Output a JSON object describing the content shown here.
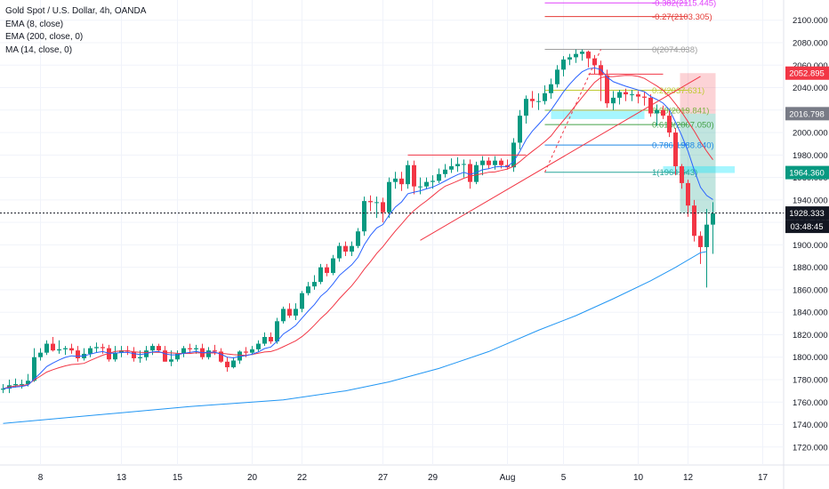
{
  "legend": {
    "symbol": "Gold Spot / U.S. Dollar, 4h, OANDA",
    "ema8": "EMA (8, close)",
    "ema200": "EMA (200, close, 0)",
    "ma14": "MA (14, close, 0)"
  },
  "chart_data": {
    "type": "candlestick",
    "title": "Gold Spot / U.S. Dollar, 4h, OANDA",
    "y_ticks": [
      1720,
      1740,
      1760,
      1780,
      1800,
      1820,
      1840,
      1860,
      1880,
      1900,
      1920,
      1940,
      1960,
      1980,
      2000,
      2020,
      2040,
      2060,
      2080,
      2100
    ],
    "y_tick_labels": [
      "1720.000",
      "1740.000",
      "1760.000",
      "1780.000",
      "1800.000",
      "1820.000",
      "1840.000",
      "1860.000",
      "1880.000",
      "1900.000",
      "1920.000",
      "1940.000",
      "1960.000",
      "1980.000",
      "2000.000",
      "2020.000",
      "2040.000",
      "2060.000",
      "2080.000",
      "2100.000"
    ],
    "ylim": [
      1704,
      2118
    ],
    "x_ticks": [
      {
        "label": "8",
        "bar": 6
      },
      {
        "label": "13",
        "bar": 19
      },
      {
        "label": "15",
        "bar": 28
      },
      {
        "label": "20",
        "bar": 40
      },
      {
        "label": "22",
        "bar": 48
      },
      {
        "label": "27",
        "bar": 61
      },
      {
        "label": "29",
        "bar": 69
      },
      {
        "label": "Aug",
        "bar": 81
      },
      {
        "label": "5",
        "bar": 90
      },
      {
        "label": "10",
        "bar": 102
      },
      {
        "label": "12",
        "bar": 110
      },
      {
        "label": "17",
        "bar": 122
      }
    ],
    "series": [
      {
        "name": "Gold Spot / U.S. Dollar",
        "kind": "ohlc",
        "open": [
          1771,
          1772,
          1775,
          1776,
          1776,
          1779,
          1800,
          1804,
          1812,
          1806,
          1807,
          1808,
          1806,
          1799,
          1803,
          1808,
          1809,
          1808,
          1798,
          1804,
          1806,
          1805,
          1799,
          1800,
          1806,
          1810,
          1806,
          1796,
          1798,
          1803,
          1808,
          1807,
          1808,
          1800,
          1806,
          1805,
          1796,
          1791,
          1797,
          1805,
          1804,
          1807,
          1812,
          1818,
          1814,
          1832,
          1843,
          1837,
          1843,
          1857,
          1863,
          1867,
          1880,
          1875,
          1888,
          1899,
          1894,
          1899,
          1912,
          1939,
          1938,
          1938,
          1929,
          1956,
          1959,
          1954,
          1971,
          1952,
          1952,
          1956,
          1957,
          1963,
          1967,
          1970,
          1972,
          1972,
          1956,
          1971,
          1975,
          1971,
          1975,
          1971,
          1969,
          1991,
          2015,
          2030,
          2028,
          2028,
          2035,
          2043,
          2056,
          2065,
          2067,
          2070,
          2072,
          2066,
          2060,
          2051,
          2026,
          2031,
          2036,
          2034,
          2034,
          2032,
          2031,
          2017,
          2020,
          2015,
          2000,
          1970,
          1955,
          1935,
          1908,
          1898,
          1918
        ],
        "high": [
          1776,
          1780,
          1781,
          1780,
          1785,
          1808,
          1808,
          1815,
          1818,
          1815,
          1810,
          1812,
          1810,
          1808,
          1810,
          1813,
          1812,
          1811,
          1810,
          1810,
          1810,
          1809,
          1806,
          1810,
          1812,
          1812,
          1810,
          1806,
          1806,
          1810,
          1812,
          1811,
          1812,
          1809,
          1811,
          1808,
          1800,
          1800,
          1806,
          1809,
          1810,
          1815,
          1822,
          1822,
          1835,
          1845,
          1848,
          1848,
          1859,
          1867,
          1873,
          1883,
          1883,
          1891,
          1902,
          1903,
          1903,
          1915,
          1943,
          1944,
          1943,
          1942,
          1960,
          1965,
          1965,
          1975,
          1975,
          1960,
          1960,
          1962,
          1968,
          1972,
          1977,
          1978,
          1976,
          1976,
          1974,
          1979,
          1978,
          1979,
          1977,
          1976,
          1995,
          2020,
          2033,
          2037,
          2035,
          2042,
          2048,
          2060,
          2068,
          2070,
          2074,
          2074,
          2073,
          2069,
          2064,
          2056,
          2037,
          2038,
          2039,
          2038,
          2037,
          2036,
          2034,
          2025,
          2024,
          2020,
          2004,
          1972,
          1958,
          1940,
          1912,
          1932,
          1938
        ],
        "low": [
          1768,
          1768,
          1773,
          1772,
          1774,
          1778,
          1797,
          1802,
          1805,
          1803,
          1802,
          1803,
          1796,
          1797,
          1800,
          1804,
          1803,
          1796,
          1796,
          1800,
          1802,
          1796,
          1795,
          1797,
          1802,
          1804,
          1796,
          1792,
          1796,
          1800,
          1803,
          1803,
          1798,
          1798,
          1802,
          1795,
          1787,
          1790,
          1794,
          1800,
          1802,
          1805,
          1810,
          1812,
          1812,
          1830,
          1835,
          1833,
          1840,
          1855,
          1860,
          1865,
          1872,
          1873,
          1885,
          1890,
          1890,
          1897,
          1908,
          1930,
          1924,
          1920,
          1924,
          1950,
          1948,
          1950,
          1945,
          1945,
          1950,
          1950,
          1955,
          1960,
          1964,
          1965,
          1960,
          1950,
          1954,
          1962,
          1968,
          1967,
          1968,
          1967,
          1965,
          1985,
          2008,
          2022,
          2020,
          2025,
          2030,
          2040,
          2050,
          2060,
          2062,
          2064,
          2058,
          2052,
          2028,
          2022,
          2020,
          2025,
          2028,
          2028,
          2026,
          2024,
          2014,
          2006,
          2012,
          1996,
          1962,
          1950,
          1925,
          1903,
          1883,
          1862,
          1892
        ],
        "close": [
          1772,
          1775,
          1776,
          1776,
          1779,
          1800,
          1804,
          1812,
          1806,
          1807,
          1808,
          1806,
          1799,
          1803,
          1808,
          1809,
          1808,
          1798,
          1804,
          1806,
          1805,
          1799,
          1800,
          1806,
          1810,
          1806,
          1796,
          1798,
          1803,
          1808,
          1807,
          1808,
          1800,
          1806,
          1805,
          1796,
          1791,
          1797,
          1805,
          1804,
          1807,
          1812,
          1818,
          1814,
          1832,
          1843,
          1837,
          1843,
          1857,
          1863,
          1867,
          1880,
          1875,
          1888,
          1899,
          1894,
          1899,
          1912,
          1939,
          1938,
          1938,
          1929,
          1956,
          1959,
          1954,
          1971,
          1952,
          1952,
          1956,
          1957,
          1963,
          1967,
          1970,
          1972,
          1972,
          1956,
          1971,
          1975,
          1971,
          1975,
          1971,
          1969,
          1991,
          2015,
          2030,
          2028,
          2028,
          2035,
          2043,
          2056,
          2065,
          2067,
          2070,
          2072,
          2066,
          2060,
          2051,
          2026,
          2031,
          2036,
          2034,
          2034,
          2032,
          2031,
          2017,
          2020,
          2015,
          2000,
          1970,
          1955,
          1935,
          1908,
          1898,
          1918,
          1928
        ]
      },
      {
        "name": "EMA (8, close)",
        "kind": "line",
        "color": "#2962ff"
      },
      {
        "name": "EMA (200, close, 0)",
        "kind": "line",
        "color": "#2196f3",
        "points": [
          [
            0,
            1741
          ],
          [
            14,
            1748
          ],
          [
            30,
            1756
          ],
          [
            45,
            1762
          ],
          [
            55,
            1770
          ],
          [
            62,
            1778
          ],
          [
            70,
            1790
          ],
          [
            78,
            1805
          ],
          [
            86,
            1824
          ],
          [
            92,
            1837
          ],
          [
            98,
            1852
          ],
          [
            104,
            1868
          ],
          [
            108,
            1880
          ],
          [
            112,
            1893
          ],
          [
            113,
            1894
          ]
        ]
      },
      {
        "name": "MA (14, close, 0)",
        "kind": "line",
        "color": "#f23645"
      }
    ],
    "fibonacci": [
      {
        "label": "-0.382(2115.445)",
        "price": 2115.445,
        "color": "#e040fb"
      },
      {
        "label": "-0.27(2103.305)",
        "price": 2103.305,
        "color": "#e53935"
      },
      {
        "label": "0(2074.038)",
        "price": 2074.038,
        "color": "#9e9e9e"
      },
      {
        "label": "0.2(2037.631)",
        "price": 2037.631,
        "color": "#c0ca33"
      },
      {
        "label": "0.38(2019.841)",
        "price": 2019.841,
        "color": "#7cb342"
      },
      {
        "label": "0.618(2007.050)",
        "price": 2007.05,
        "color": "#43a047"
      },
      {
        "label": "0.786(1988.840)",
        "price": 1988.84,
        "color": "#1e88e5"
      },
      {
        "label": "1(1964.643)",
        "price": 1964.643,
        "color": "#26a69a"
      }
    ],
    "annotations": {
      "current_price": "1928.333",
      "countdown": "03:48:45",
      "stop_label": "2052.895",
      "entry_label": "2016.798",
      "target_label": "1964.360"
    },
    "drawings": [
      {
        "type": "trendline",
        "color": "#f23645",
        "from": [
          67,
          1904
        ],
        "to": [
          112,
          2050
        ]
      },
      {
        "type": "hline",
        "color": "#f23645",
        "from": [
          65,
          1980
        ],
        "to": [
          84,
          1980
        ]
      },
      {
        "type": "hline",
        "color": "#f23645",
        "from": [
          94,
          2052
        ],
        "to": [
          106,
          2052
        ]
      }
    ]
  }
}
